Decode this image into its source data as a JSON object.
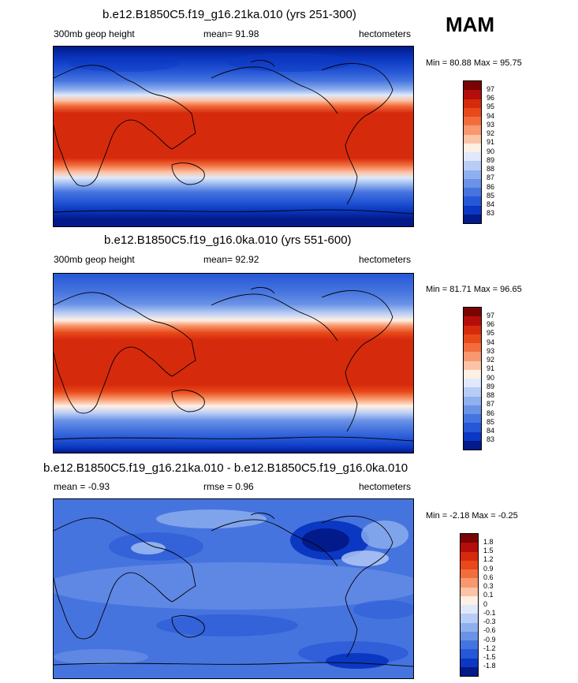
{
  "season_label": "MAM",
  "panels": [
    {
      "title": "b.e12.B1850C5.f19_g16.21ka.010 (yrs 251-300)",
      "left_label": "300mb geop height",
      "mean_text": "mean=  91.98",
      "units": "hectometers",
      "minmax": "Min =  80.88 Max =  95.75",
      "colorbar": {
        "labels": [
          "97",
          "96",
          "95",
          "94",
          "93",
          "92",
          "91",
          "90",
          "89",
          "88",
          "87",
          "86",
          "85",
          "84",
          "83"
        ]
      }
    },
    {
      "title": "b.e12.B1850C5.f19_g16.0ka.010 (yrs 551-600)",
      "left_label": "300mb geop height",
      "mean_text": "mean=  92.92",
      "units": "hectometers",
      "minmax": "Min =  81.71 Max =  96.65",
      "colorbar": {
        "labels": [
          "97",
          "96",
          "95",
          "94",
          "93",
          "92",
          "91",
          "90",
          "89",
          "88",
          "87",
          "86",
          "85",
          "84",
          "83"
        ]
      }
    },
    {
      "title": "b.e12.B1850C5.f19_g16.21ka.010 - b.e12.B1850C5.f19_g16.0ka.010",
      "left_label": "mean =  -0.93",
      "mean_text": "rmse =  0.96",
      "units": "hectometers",
      "minmax": "Min =  -2.18 Max =  -0.25",
      "colorbar": {
        "labels": [
          "1.8",
          "1.5",
          "1.2",
          "0.9",
          "0.6",
          "0.3",
          "0.1",
          "0",
          "-0.1",
          "-0.3",
          "-0.6",
          "-0.9",
          "-1.2",
          "-1.5",
          "-1.8"
        ]
      }
    }
  ],
  "palette": [
    "#7a0403",
    "#b30e0b",
    "#d62a0c",
    "#e8491a",
    "#f26d3d",
    "#f8986e",
    "#fcc3a6",
    "#fff0e4",
    "#dfe9fb",
    "#b8ccf6",
    "#8fb0ee",
    "#6a92e6",
    "#4674df",
    "#2657d6",
    "#0b38c2",
    "#031a8a"
  ]
}
